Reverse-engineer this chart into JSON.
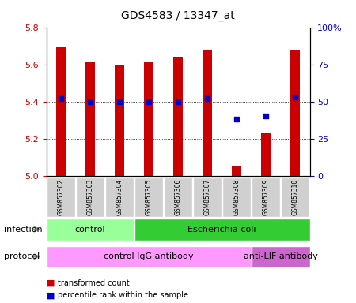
{
  "title": "GDS4583 / 13347_at",
  "samples": [
    "GSM857302",
    "GSM857303",
    "GSM857304",
    "GSM857305",
    "GSM857306",
    "GSM857307",
    "GSM857308",
    "GSM857309",
    "GSM857310"
  ],
  "transformed_counts": [
    5.69,
    5.61,
    5.6,
    5.61,
    5.64,
    5.68,
    5.05,
    5.23,
    5.68
  ],
  "percentile_ranks": [
    52,
    50,
    50,
    50,
    50,
    52,
    38,
    40,
    53
  ],
  "ylim_left": [
    5.0,
    5.8
  ],
  "ylim_right": [
    0,
    100
  ],
  "yticks_left": [
    5.0,
    5.2,
    5.4,
    5.6,
    5.8
  ],
  "yticks_right": [
    0,
    25,
    50,
    75,
    100
  ],
  "bar_color": "#cc0000",
  "dot_color": "#0000cc",
  "bar_width": 0.35,
  "infection_groups": [
    {
      "label": "control",
      "start": 0,
      "end": 3,
      "color": "#99ff99"
    },
    {
      "label": "Escherichia coli",
      "start": 3,
      "end": 9,
      "color": "#33cc33"
    }
  ],
  "protocol_groups": [
    {
      "label": "control IgG antibody",
      "start": 0,
      "end": 7,
      "color": "#ff99ff"
    },
    {
      "label": "anti-LIF antibody",
      "start": 7,
      "end": 9,
      "color": "#cc66cc"
    }
  ],
  "legend_items": [
    {
      "color": "#cc0000",
      "label": "transformed count"
    },
    {
      "color": "#0000cc",
      "label": "percentile rank within the sample"
    }
  ],
  "left_axis_color": "#cc0000",
  "right_axis_color": "#0000cc",
  "infection_label": "infection",
  "protocol_label": "protocol",
  "sample_box_color": "#d0d0d0",
  "arrow_color": "#888888"
}
